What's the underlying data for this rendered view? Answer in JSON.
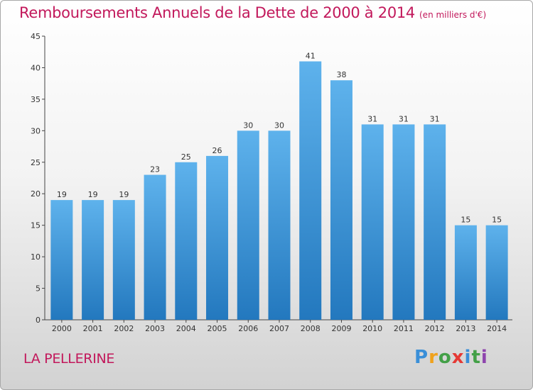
{
  "title": "Remboursements Annuels de la Dette de 2000 à 2014",
  "subtitle": "(en milliers d'€)",
  "commune": "LA PELLERINE",
  "logo": {
    "letters": [
      "P",
      "r",
      "o",
      "x",
      "i",
      "t",
      "i"
    ]
  },
  "colors": {
    "title": "#c2185b",
    "bar_top": "#5eb2ec",
    "bar_bottom": "#2378be"
  },
  "chart_data": {
    "type": "bar",
    "title": "Remboursements Annuels de la Dette de 2000 à 2014",
    "subtitle": "(en milliers d'€)",
    "categories": [
      "2000",
      "2001",
      "2002",
      "2003",
      "2004",
      "2005",
      "2006",
      "2007",
      "2008",
      "2009",
      "2010",
      "2011",
      "2012",
      "2013",
      "2014"
    ],
    "values": [
      19,
      19,
      19,
      23,
      25,
      26,
      30,
      30,
      41,
      38,
      31,
      31,
      31,
      15,
      15
    ],
    "yticks": [
      0,
      5,
      10,
      15,
      20,
      25,
      30,
      35,
      40,
      45
    ],
    "ylim": [
      0,
      45
    ],
    "xlabel": "",
    "ylabel": "",
    "grid": false
  }
}
